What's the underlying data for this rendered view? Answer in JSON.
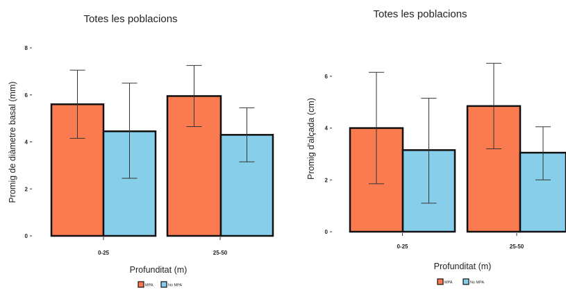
{
  "chart_data": [
    {
      "type": "bar",
      "title": "Totes les poblacions",
      "xlabel": "Profunditat (m)",
      "ylabel": "Promig de diàmetre basal (mm)",
      "categories": [
        "0-25",
        "25-50"
      ],
      "ylim": [
        0,
        8
      ],
      "yticks": [
        "0",
        "2",
        "4",
        "6",
        "8"
      ],
      "series": [
        {
          "name": "MPA",
          "color": "#F97B4F",
          "values": [
            5.6,
            5.95
          ],
          "error_low": [
            4.15,
            4.65
          ],
          "error_high": [
            7.05,
            7.25
          ]
        },
        {
          "name": "No MPA",
          "color": "#87CEEB",
          "values": [
            4.45,
            4.3
          ],
          "error_low": [
            2.45,
            3.15
          ],
          "error_high": [
            6.5,
            5.45
          ]
        }
      ],
      "legend": "bottom",
      "grid": false
    },
    {
      "type": "bar",
      "title": "Totes les poblacions",
      "xlabel": "Profunditat (m)",
      "ylabel": "Promig d'alçada (cm)",
      "categories": [
        "0-25",
        "25-50"
      ],
      "ylim": [
        0,
        6.8
      ],
      "yticks": [
        "0",
        "2",
        "4",
        "6"
      ],
      "series": [
        {
          "name": "MPA",
          "color": "#F97B4F",
          "values": [
            4.0,
            4.85
          ],
          "error_low": [
            1.85,
            3.2
          ],
          "error_high": [
            6.15,
            6.5
          ]
        },
        {
          "name": "No MPA",
          "color": "#87CEEB",
          "values": [
            3.15,
            3.05
          ],
          "error_low": [
            1.1,
            2.0
          ],
          "error_high": [
            5.15,
            4.05
          ]
        }
      ],
      "legend": "bottom",
      "grid": false
    }
  ]
}
